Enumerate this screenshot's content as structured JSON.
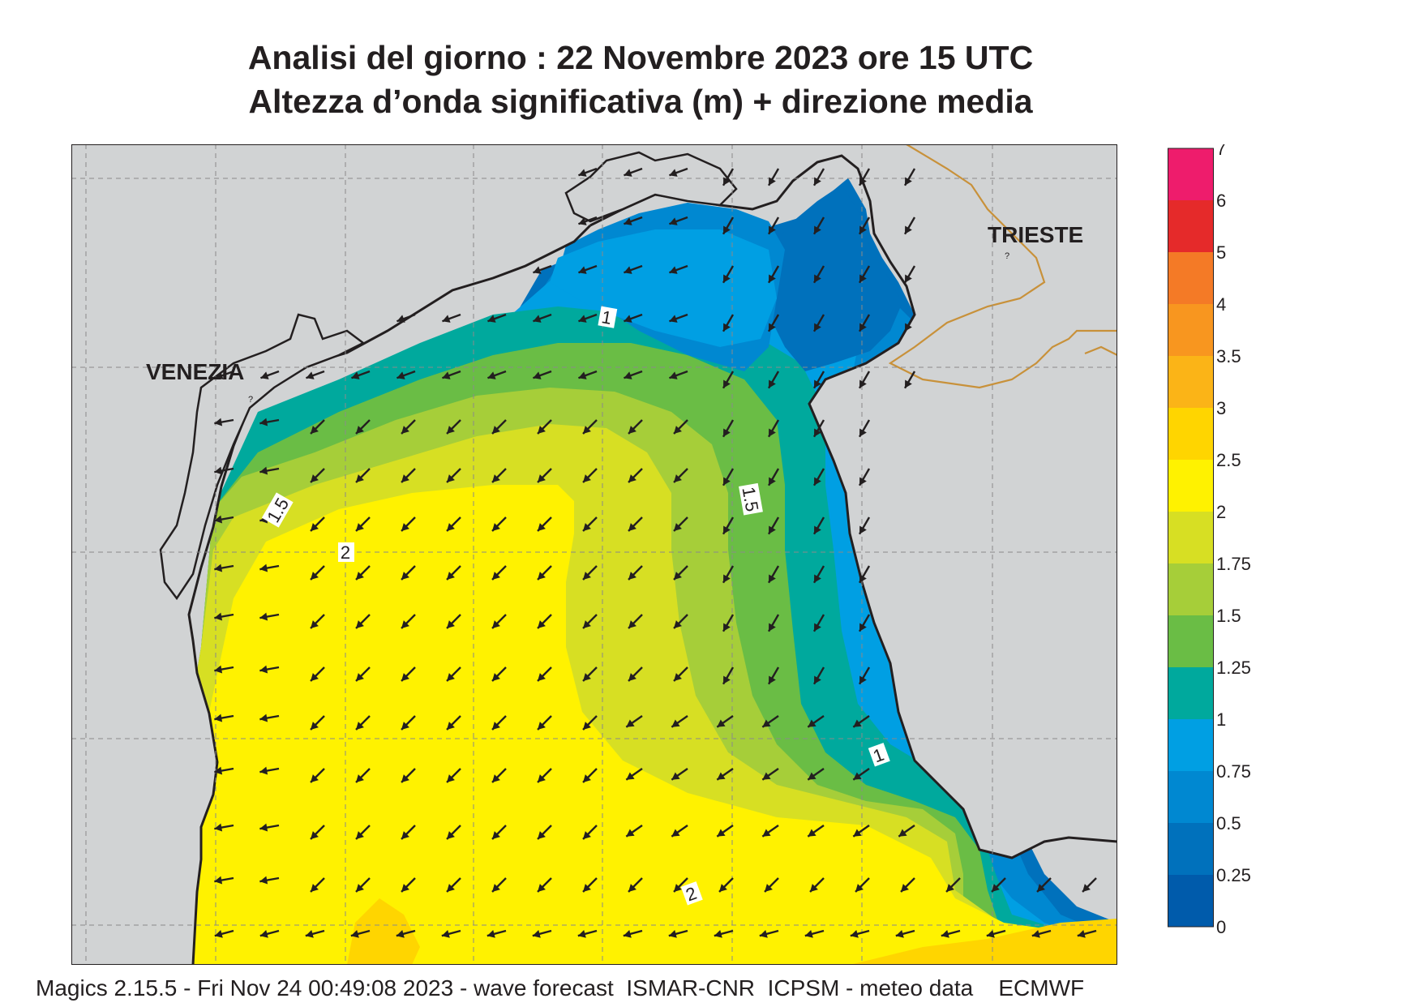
{
  "header": {
    "title_line1": "Analisi del giorno :  22 Novembre  2023   ore 15 UTC",
    "title_line2": "Altezza d’onda significativa (m) + direzione media"
  },
  "map": {
    "cities": [
      {
        "name": "VENEZIA"
      },
      {
        "name": "TRIESTE"
      }
    ],
    "contour_labels": [
      "1",
      "1.5",
      "1.5",
      "2",
      "1",
      "2"
    ],
    "colors": {
      "land": "#d1d3d4",
      "coast": "#231f20",
      "border": "#c8913a",
      "grid": "#8a8a8a"
    }
  },
  "colorbar": {
    "ticks": [
      "7",
      "6",
      "5",
      "4",
      "3.5",
      "3",
      "2.5",
      "2",
      "1.75",
      "1.5",
      "1.25",
      "1",
      "0.75",
      "0.5",
      "0.25",
      "0"
    ],
    "colors": [
      "#ee1c6c",
      "#e52a2a",
      "#f47a26",
      "#f8961f",
      "#fbb417",
      "#ffd500",
      "#fff200",
      "#d7df23",
      "#a6ce39",
      "#6abd45",
      "#00a99d",
      "#009fe3",
      "#0088d1",
      "#0071bc",
      "#005bab"
    ]
  },
  "footer": {
    "text": "Magics 2.15.5 - Fri Nov 24 00:49:08 2023 - wave forecast  ISMAR-CNR  ICPSM - meteo data    ECMWF"
  }
}
